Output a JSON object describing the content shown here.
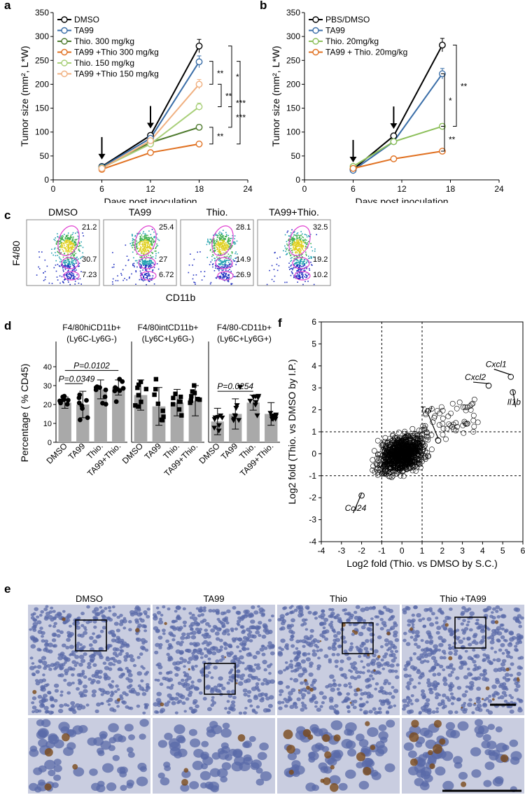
{
  "panel_labels": {
    "a": "a",
    "b": "b",
    "c": "c",
    "d": "d",
    "e": "e",
    "f": "f"
  },
  "colors": {
    "dmso": "#000000",
    "ta99": "#3a6ea8",
    "thio300": "#4e7a2e",
    "combo300": "#e07020",
    "thio150": "#a8cf78",
    "combo150": "#f0b080",
    "bar": "#a9a9a9",
    "gate": "#e040d0",
    "tissue_bg": "#c9cde0",
    "nuclei": "#5a6aa8",
    "stain": "#7a4a1a"
  },
  "chart_data": [
    {
      "id": "a",
      "type": "line",
      "xlabel": "Days post inoculation",
      "ylabel": "Tumor size (mm², L*W)",
      "xlim": [
        0,
        24
      ],
      "ylim": [
        0,
        350
      ],
      "xticks": [
        "0",
        "6",
        "12",
        "18",
        "24"
      ],
      "yticks": [
        "0",
        "50",
        "100",
        "150",
        "200",
        "250",
        "300",
        "350"
      ],
      "x": [
        6,
        12,
        18
      ],
      "series": [
        {
          "name": "DMSO",
          "values": [
            28,
            93,
            280
          ],
          "color": "#000000"
        },
        {
          "name": "TA99",
          "values": [
            27,
            87,
            247
          ],
          "color": "#3a6ea8"
        },
        {
          "name": "Thio. 300 mg/kg",
          "values": [
            25,
            78,
            110
          ],
          "color": "#4e7a2e"
        },
        {
          "name": "TA99 +Thio 300 mg/kg",
          "values": [
            22,
            57,
            75
          ],
          "color": "#e07020"
        },
        {
          "name": "Thio. 150 mg/kg",
          "values": [
            25,
            75,
            153
          ],
          "color": "#a8cf78"
        },
        {
          "name": "TA99 +Thio 150 mg/kg",
          "values": [
            24,
            82,
            200
          ],
          "color": "#f0b080"
        }
      ],
      "arrows_at_x": [
        6,
        12
      ],
      "significance": [
        "*",
        "**",
        "**",
        "***",
        "**",
        "***"
      ]
    },
    {
      "id": "b",
      "type": "line",
      "xlabel": "Days post inoculation",
      "ylabel": "Tumor size (mm², L*W)",
      "xlim": [
        0,
        24
      ],
      "ylim": [
        0,
        350
      ],
      "xticks": [
        "0",
        "6",
        "12",
        "18",
        "24"
      ],
      "yticks": [
        "0",
        "50",
        "100",
        "150",
        "200",
        "250",
        "300",
        "350"
      ],
      "x": [
        6,
        11,
        17
      ],
      "series": [
        {
          "name": "PBS/DMSO",
          "values": [
            22,
            92,
            282
          ],
          "color": "#000000"
        },
        {
          "name": "TA99",
          "values": [
            20,
            80,
            222
          ],
          "color": "#3a6ea8"
        },
        {
          "name": "Thio. 20mg/kg",
          "values": [
            28,
            80,
            112
          ],
          "color": "#8cbf5a"
        },
        {
          "name": "TA99 + Thio. 20mg/kg",
          "values": [
            24,
            44,
            60
          ],
          "color": "#e07020"
        }
      ],
      "arrows_at_x": [
        6,
        11
      ],
      "significance": [
        "*",
        "**",
        "**"
      ]
    },
    {
      "id": "d",
      "type": "bar",
      "ylabel": "Percentage ( % CD45)",
      "ylim": [
        0,
        40
      ],
      "categories": [
        "DMSO",
        "TA99",
        "Thio.",
        "TA99+Thio."
      ],
      "groups": [
        {
          "title1": "F4/80hiCD11b+",
          "title2": "(Ly6C-Ly6G-)",
          "marker": "circle",
          "values": [
            21,
            20,
            28,
            29
          ],
          "errors": [
            3,
            7,
            5,
            4
          ],
          "pvals": [
            "P=0.0349",
            "P=0.0102"
          ]
        },
        {
          "title1": "F4/80intCD11b+",
          "title2": "(Ly6C+Ly6G-)",
          "marker": "square",
          "values": [
            25,
            19,
            21,
            22
          ],
          "errors": [
            8,
            10,
            7,
            8
          ],
          "pvals": []
        },
        {
          "title1": "F4/80-CD11b+",
          "title2": "(Ly6C+Ly6G+)",
          "marker": "triangle",
          "values": [
            11,
            15,
            21,
            15
          ],
          "errors": [
            7,
            8,
            4,
            6
          ],
          "pvals": [
            "P=0.0254"
          ]
        }
      ]
    },
    {
      "id": "f",
      "type": "scatter",
      "xlabel": "Log2 fold (Thio. vs DMSO by S.C.)",
      "ylabel": "Log2 fold (Thio. vs DMSO by I.P.)",
      "xlim": [
        -4,
        6
      ],
      "ylim": [
        -4,
        6
      ],
      "xticks": [
        "-4",
        "-3",
        "-2",
        "-1",
        "0",
        "1",
        "2",
        "3",
        "4",
        "5",
        "6"
      ],
      "yticks": [
        "-4",
        "-3",
        "-2",
        "-1",
        "0",
        "1",
        "2",
        "3",
        "4",
        "5",
        "6"
      ],
      "thresholds": {
        "x": [
          -1,
          1
        ],
        "y": [
          -1,
          1
        ]
      },
      "labeled_points": [
        {
          "label": "Cxcl1",
          "x": 5.4,
          "y": 3.5
        },
        {
          "label": "Cxcl2",
          "x": 4.3,
          "y": 3.1
        },
        {
          "label": "Il1b",
          "x": 5.5,
          "y": 2.8
        },
        {
          "label": "Tnf",
          "x": 1.8,
          "y": 0.6
        },
        {
          "label": "Ccl24",
          "x": -2.0,
          "y": -1.9
        }
      ]
    }
  ],
  "flow": {
    "xlabel": "CD11b",
    "ylabel": "F4/80",
    "panels": [
      {
        "title": "DMSO",
        "gates": [
          "21.2",
          "30.7",
          "7.23"
        ]
      },
      {
        "title": "TA99",
        "gates": [
          "25.4",
          "27",
          "6.72"
        ]
      },
      {
        "title": "Thio.",
        "gates": [
          "28.1",
          "14.9",
          "26.9"
        ]
      },
      {
        "title": "TA99+Thio.",
        "gates": [
          "32.5",
          "19.2",
          "10.2"
        ]
      }
    ]
  },
  "ihc": {
    "titles": [
      "DMSO",
      "TA99",
      "Thio",
      "Thio +TA99"
    ]
  }
}
